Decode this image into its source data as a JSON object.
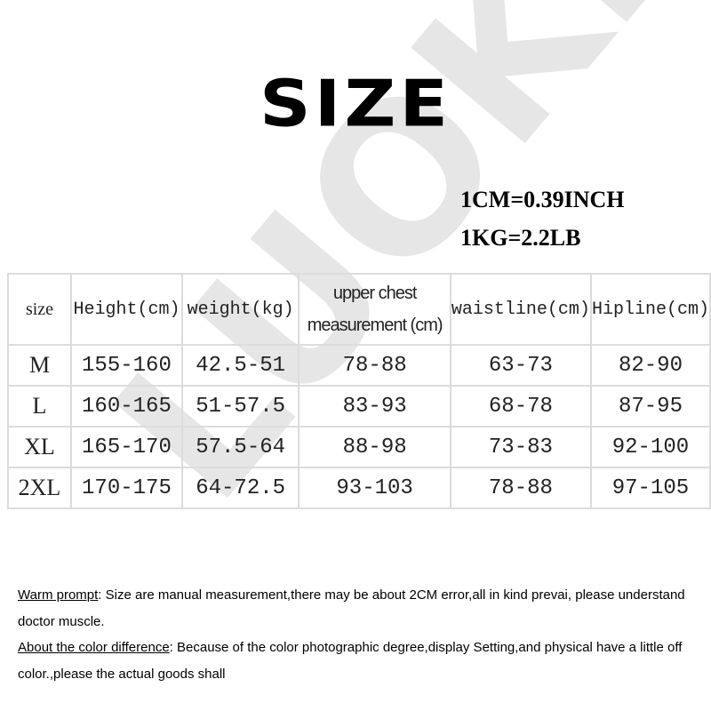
{
  "title": "SIZE",
  "conversions": [
    "1CM=0.39INCH",
    "1KG=2.2LB"
  ],
  "watermark": "LUOKE",
  "table": {
    "headers": [
      "size",
      "Height(cm)",
      "weight(kg)",
      "upper chest measurement (cm)",
      "waistline(cm)",
      "Hipline(cm)"
    ],
    "rows": [
      [
        "M",
        "155-160",
        "42.5-51",
        "78-88",
        "63-73",
        "82-90"
      ],
      [
        "L",
        "160-165",
        "51-57.5",
        "83-93",
        "68-78",
        "87-95"
      ],
      [
        "XL",
        "165-170",
        "57.5-64",
        "88-98",
        "73-83",
        "92-100"
      ],
      [
        "2XL",
        "170-175",
        "64-72.5",
        "93-103",
        "78-88",
        "97-105"
      ]
    ]
  },
  "notes": [
    {
      "label": "Warm prompt",
      "text": ": Size are manual measurement,there may be about 2CM error,all in kind prevai, please understand doctor muscle."
    },
    {
      "label": "About the color difference",
      "text": ": Because of the color photographic degree,display Setting,and physical have a little off color.,please the actual goods shall"
    }
  ]
}
